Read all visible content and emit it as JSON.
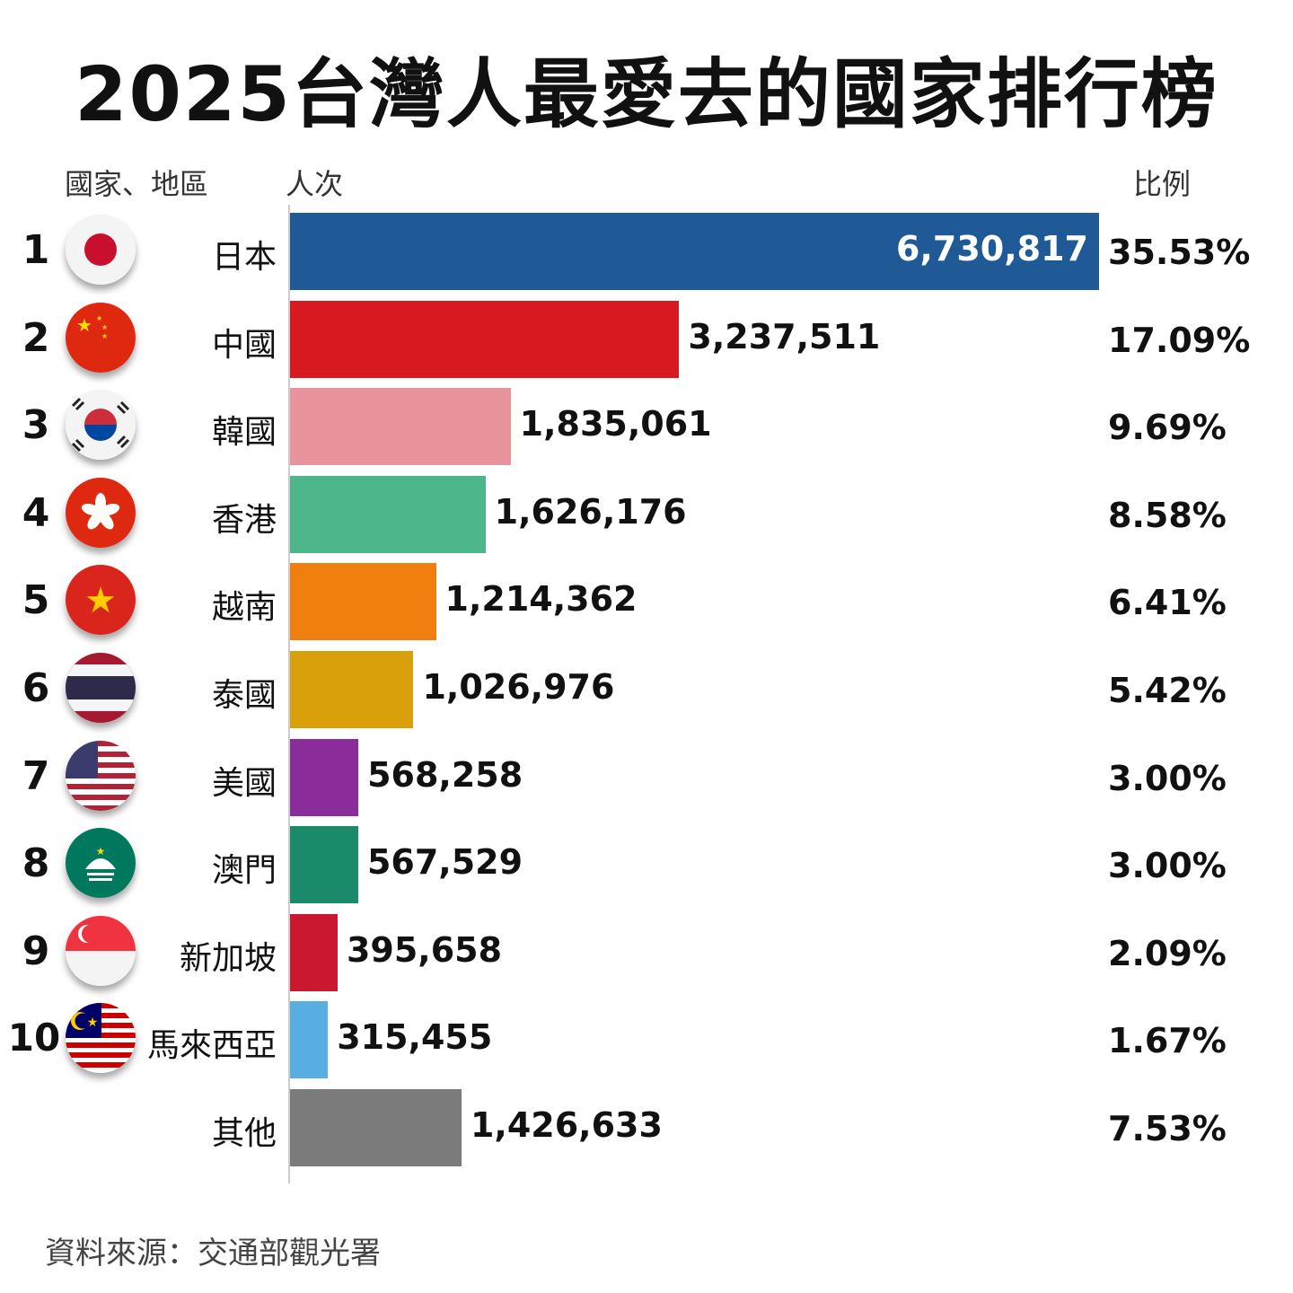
{
  "title": "2025台灣人最愛去的國家排行榜",
  "headers": {
    "country": "國家、地區",
    "visits": "人次",
    "share": "比例"
  },
  "source": "資料來源：交通部觀光署",
  "chart_data": {
    "type": "bar",
    "orientation": "horizontal",
    "title": "2025台灣人最愛去的國家排行榜",
    "xlabel": "人次",
    "categories": [
      "日本",
      "中國",
      "韓國",
      "香港",
      "越南",
      "泰國",
      "美國",
      "澳門",
      "新加坡",
      "馬來西亞",
      "其他"
    ],
    "ranks": [
      "1",
      "2",
      "3",
      "4",
      "5",
      "6",
      "7",
      "8",
      "9",
      "10",
      ""
    ],
    "values": [
      6730817,
      3237511,
      1835061,
      1626176,
      1214362,
      1026976,
      568258,
      567529,
      395658,
      315455,
      1426633
    ],
    "value_labels": [
      "6,730,817",
      "3,237,511",
      "1,835,061",
      "1,626,176",
      "1,214,362",
      "1,026,976",
      "568,258",
      "567,529",
      "395,658",
      "315,455",
      "1,426,633"
    ],
    "percent_labels": [
      "35.53%",
      "17.09%",
      "9.69%",
      "8.58%",
      "6.41%",
      "5.42%",
      "3.00%",
      "3.00%",
      "2.09%",
      "1.67%",
      "7.53%"
    ],
    "colors": [
      "#1f5a96",
      "#d8191f",
      "#e9939c",
      "#4db68a",
      "#f17f10",
      "#daa00b",
      "#8a2c9a",
      "#1a8a6b",
      "#c9182f",
      "#58aee0",
      "#7b7b7b"
    ],
    "flag_icons": [
      "japan-flag-icon",
      "china-flag-icon",
      "korea-flag-icon",
      "hongkong-flag-icon",
      "vietnam-flag-icon",
      "thailand-flag-icon",
      "usa-flag-icon",
      "macau-flag-icon",
      "singapore-flag-icon",
      "malaysia-flag-icon",
      ""
    ],
    "grid": false,
    "legend": "none"
  }
}
